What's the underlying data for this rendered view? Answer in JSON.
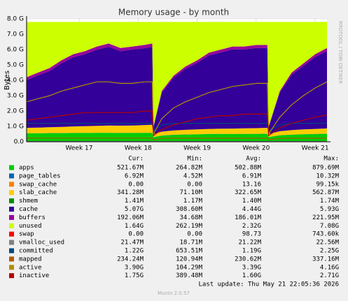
{
  "chart_data": {
    "type": "area",
    "title": "Memory usage - by month",
    "ylabel": "Bytes",
    "watermark": "RRDTOOL / TOBI OETIKER",
    "footer": "Last update: Thu May 21 22:05:36 2026",
    "version": "Munin 2.0.57",
    "legend_headers": [
      "Cur:",
      "Min:",
      "Avg:",
      "Max:"
    ],
    "grid": true,
    "xlim": [
      16.11,
      21.2
    ],
    "xticks": [
      {
        "value": 17,
        "label": "Week 17"
      },
      {
        "value": 18,
        "label": "Week 18"
      },
      {
        "value": 19,
        "label": "Week 19"
      },
      {
        "value": 20,
        "label": "Week 20"
      },
      {
        "value": 21,
        "label": "Week 21"
      }
    ],
    "ylim": [
      0,
      8
    ],
    "yticks": [
      {
        "value": 0,
        "label": "0.0"
      },
      {
        "value": 1,
        "label": "1.0 G"
      },
      {
        "value": 2,
        "label": "2.0 G"
      },
      {
        "value": 3,
        "label": "3.0 G"
      },
      {
        "value": 4,
        "label": "4.0 G"
      },
      {
        "value": 5,
        "label": "5.0 G"
      },
      {
        "value": 6,
        "label": "6.0 G"
      },
      {
        "value": 7,
        "label": "7.0 G"
      },
      {
        "value": 8,
        "label": "8.0 G"
      }
    ],
    "x": [
      16.11,
      16.3,
      16.5,
      16.7,
      16.9,
      17.1,
      17.3,
      17.5,
      17.7,
      17.9,
      18.1,
      18.24,
      18.26,
      18.4,
      18.6,
      18.8,
      19.0,
      19.2,
      19.4,
      19.6,
      19.8,
      20.0,
      20.19,
      20.21,
      20.4,
      20.6,
      20.8,
      21.0,
      21.2
    ],
    "series": [
      {
        "name": "apps",
        "color": "#00cc00",
        "style": "stack",
        "cur": "521.67M",
        "min": "264.82M",
        "avg": "502.88M",
        "max": "879.69M",
        "values": [
          0.55,
          0.55,
          0.56,
          0.56,
          0.57,
          0.57,
          0.58,
          0.58,
          0.57,
          0.57,
          0.58,
          0.58,
          0.3,
          0.4,
          0.45,
          0.47,
          0.48,
          0.5,
          0.5,
          0.5,
          0.51,
          0.51,
          0.52,
          0.3,
          0.42,
          0.46,
          0.49,
          0.5,
          0.52
        ]
      },
      {
        "name": "page_tables",
        "color": "#0066b3",
        "style": "stack",
        "cur": "6.92M",
        "min": "4.52M",
        "avg": "6.91M",
        "max": "10.32M",
        "values": [
          0.007,
          0.007,
          0.007,
          0.007,
          0.007,
          0.007,
          0.007,
          0.007,
          0.007,
          0.007,
          0.007,
          0.007,
          0.005,
          0.007,
          0.007,
          0.007,
          0.007,
          0.007,
          0.007,
          0.007,
          0.007,
          0.007,
          0.007,
          0.005,
          0.007,
          0.007,
          0.007,
          0.007,
          0.007
        ]
      },
      {
        "name": "swap_cache",
        "color": "#ff8000",
        "style": "stack",
        "cur": "0.00",
        "min": "0.00",
        "avg": "13.16",
        "max": "99.15k",
        "values": [
          0,
          0,
          0,
          0,
          0,
          0,
          0,
          0,
          0,
          0,
          0,
          0,
          0,
          0,
          0,
          0,
          0,
          0,
          0,
          0,
          0,
          0,
          0,
          0,
          0,
          0,
          0,
          0,
          0
        ]
      },
      {
        "name": "slab_cache",
        "color": "#ffcc00",
        "style": "stack",
        "cur": "341.28M",
        "min": "71.10M",
        "avg": "322.65M",
        "max": "562.87M",
        "values": [
          0.35,
          0.36,
          0.38,
          0.4,
          0.42,
          0.44,
          0.45,
          0.47,
          0.47,
          0.48,
          0.5,
          0.52,
          0.2,
          0.25,
          0.28,
          0.3,
          0.32,
          0.33,
          0.34,
          0.35,
          0.36,
          0.37,
          0.38,
          0.2,
          0.26,
          0.29,
          0.31,
          0.33,
          0.34
        ]
      },
      {
        "name": "shmem",
        "color": "#008f00",
        "style": "stack",
        "cur": "1.41M",
        "min": "1.17M",
        "avg": "1.40M",
        "max": "1.74M",
        "values": [
          0.0014,
          0.0014,
          0.0014,
          0.0014,
          0.0014,
          0.0014,
          0.0014,
          0.0014,
          0.0014,
          0.0014,
          0.0014,
          0.0014,
          0.0012,
          0.0014,
          0.0014,
          0.0014,
          0.0014,
          0.0014,
          0.0014,
          0.0014,
          0.0014,
          0.0014,
          0.0014,
          0.0012,
          0.0014,
          0.0014,
          0.0014,
          0.0014,
          0.0014
        ]
      },
      {
        "name": "cache",
        "color": "#330099",
        "style": "stack",
        "cur": "5.07G",
        "min": "308.60M",
        "avg": "4.44G",
        "max": "5.93G",
        "values": [
          3.11,
          3.4,
          3.66,
          4.14,
          4.5,
          4.68,
          4.95,
          5.13,
          4.85,
          4.94,
          5.0,
          5.07,
          0.45,
          2.54,
          3.43,
          3.97,
          4.33,
          4.79,
          4.97,
          5.15,
          5.13,
          5.21,
          5.19,
          0.45,
          2.51,
          3.6,
          4.13,
          4.68,
          5.04
        ]
      },
      {
        "name": "buffers",
        "color": "#990099",
        "style": "stack",
        "cur": "192.06M",
        "min": "34.68M",
        "avg": "186.01M",
        "max": "221.95M",
        "values": [
          0.18,
          0.18,
          0.19,
          0.19,
          0.2,
          0.2,
          0.21,
          0.21,
          0.2,
          0.2,
          0.21,
          0.22,
          0.04,
          0.1,
          0.13,
          0.15,
          0.16,
          0.17,
          0.18,
          0.19,
          0.19,
          0.2,
          0.2,
          0.04,
          0.1,
          0.14,
          0.16,
          0.18,
          0.19
        ]
      },
      {
        "name": "unused",
        "color": "#ccff00",
        "style": "stack",
        "cur": "1.64G",
        "min": "262.19M",
        "avg": "2.32G",
        "max": "7.08G",
        "values": [
          3.6,
          3.3,
          3.0,
          2.5,
          2.1,
          1.9,
          1.6,
          1.4,
          1.7,
          1.6,
          1.5,
          1.4,
          6.8,
          4.5,
          3.5,
          2.9,
          2.5,
          2.0,
          1.8,
          1.6,
          1.6,
          1.5,
          1.5,
          6.8,
          4.5,
          3.3,
          2.7,
          2.1,
          1.7
        ]
      },
      {
        "name": "swap",
        "color": "#ff0000",
        "style": "stack",
        "cur": "0.00",
        "min": "0.00",
        "avg": "98.73",
        "max": "743.60k",
        "values": [
          0,
          0,
          0,
          0,
          0,
          0,
          0,
          0,
          0,
          0,
          0,
          0,
          0,
          0,
          0,
          0,
          0,
          0,
          0,
          0,
          0,
          0,
          0,
          0,
          0,
          0,
          0,
          0,
          0
        ]
      },
      {
        "name": "vmalloc_used",
        "color": "#808080",
        "style": "line",
        "cur": "21.47M",
        "min": "18.71M",
        "avg": "21.22M",
        "max": "22.56M",
        "values": [
          0.021,
          0.021,
          0.021,
          0.021,
          0.021,
          0.021,
          0.021,
          0.021,
          0.021,
          0.021,
          0.021,
          0.021,
          0.019,
          0.021,
          0.021,
          0.021,
          0.021,
          0.021,
          0.021,
          0.021,
          0.021,
          0.021,
          0.021,
          0.019,
          0.021,
          0.021,
          0.021,
          0.021,
          0.021
        ]
      },
      {
        "name": "committed",
        "color": "#00487d",
        "style": "line",
        "cur": "1.22G",
        "min": "653.51M",
        "avg": "1.19G",
        "max": "2.25G",
        "values": [
          1.2,
          1.2,
          1.2,
          1.2,
          1.2,
          1.2,
          1.2,
          1.2,
          1.2,
          1.2,
          1.2,
          1.2,
          0.7,
          1.1,
          1.2,
          1.2,
          1.2,
          1.2,
          1.2,
          1.2,
          1.2,
          1.2,
          1.2,
          0.7,
          1.1,
          1.2,
          1.2,
          1.2,
          1.22
        ]
      },
      {
        "name": "mapped",
        "color": "#b35a00",
        "style": "line",
        "cur": "234.24M",
        "min": "120.94M",
        "avg": "230.62M",
        "max": "337.16M",
        "values": [
          0.24,
          0.24,
          0.24,
          0.24,
          0.24,
          0.24,
          0.24,
          0.24,
          0.24,
          0.24,
          0.24,
          0.24,
          0.13,
          0.22,
          0.23,
          0.23,
          0.23,
          0.23,
          0.23,
          0.23,
          0.23,
          0.23,
          0.23,
          0.13,
          0.22,
          0.23,
          0.23,
          0.23,
          0.234
        ]
      },
      {
        "name": "active",
        "color": "#b38f00",
        "style": "line",
        "cur": "3.90G",
        "min": "104.29M",
        "avg": "3.39G",
        "max": "4.16G",
        "values": [
          2.6,
          2.8,
          3.0,
          3.3,
          3.5,
          3.7,
          3.9,
          3.9,
          3.8,
          3.8,
          3.9,
          3.9,
          0.5,
          1.5,
          2.2,
          2.6,
          2.9,
          3.2,
          3.4,
          3.6,
          3.7,
          3.8,
          3.8,
          0.5,
          1.6,
          2.4,
          3.0,
          3.5,
          3.9
        ]
      },
      {
        "name": "inactive",
        "color": "#b30000",
        "style": "line",
        "cur": "1.75G",
        "min": "389.48M",
        "avg": "1.60G",
        "max": "2.71G",
        "values": [
          1.4,
          1.5,
          1.6,
          1.7,
          1.8,
          1.9,
          1.9,
          1.9,
          1.9,
          1.9,
          2.0,
          2.0,
          0.4,
          0.8,
          1.1,
          1.3,
          1.5,
          1.6,
          1.7,
          1.7,
          1.8,
          1.8,
          1.8,
          0.4,
          0.9,
          1.2,
          1.4,
          1.6,
          1.75
        ]
      }
    ]
  }
}
